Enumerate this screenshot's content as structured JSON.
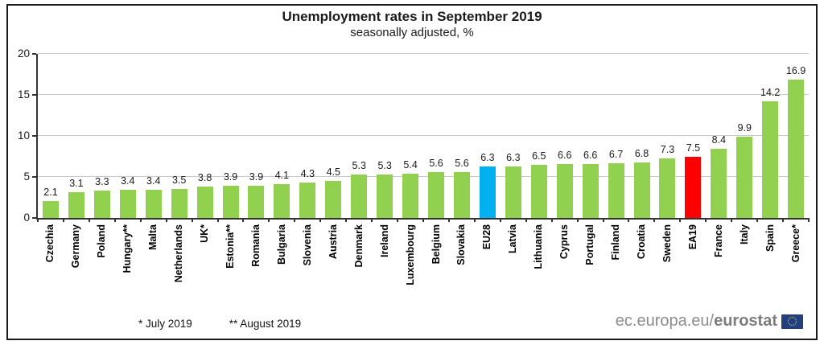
{
  "chart_data": {
    "type": "bar",
    "title": "Unemployment rates in September 2019",
    "subtitle": "seasonally adjusted, %",
    "xlabel": "",
    "ylabel": "",
    "ylim": [
      0,
      20
    ],
    "yticks": [
      0,
      5,
      10,
      15,
      20
    ],
    "grid": "horizontal",
    "legend": "none",
    "categories": [
      "Czechia",
      "Germany",
      "Poland",
      "Hungary**",
      "Malta",
      "Netherlands",
      "UK*",
      "Estonia**",
      "Romania",
      "Bulgaria",
      "Slovenia",
      "Austria",
      "Denmark",
      "Ireland",
      "Luxembourg",
      "Belgium",
      "Slovakia",
      "EU28",
      "Latvia",
      "Lithuania",
      "Cyprus",
      "Portugal",
      "Finland",
      "Croatia",
      "Sweden",
      "EA19",
      "France",
      "Italy",
      "Spain",
      "Greece*"
    ],
    "values": [
      2.1,
      3.1,
      3.3,
      3.4,
      3.4,
      3.5,
      3.8,
      3.9,
      3.9,
      4.1,
      4.3,
      4.5,
      5.3,
      5.3,
      5.4,
      5.6,
      5.6,
      6.3,
      6.3,
      6.5,
      6.6,
      6.6,
      6.7,
      6.8,
      7.3,
      7.5,
      8.4,
      9.9,
      14.2,
      16.9
    ],
    "bar_colors": {
      "default": "#92D050",
      "highlighted": {
        "EU28": "#00B0F0",
        "EA19": "#FF0000"
      }
    }
  },
  "footnotes": {
    "july": "*  July 2019",
    "august": "** August 2019"
  },
  "branding": {
    "url_prefix": "ec.europa.eu/",
    "brand": "eurostat",
    "flag_icon": "eu-flag",
    "flag_color": "#23407C"
  }
}
